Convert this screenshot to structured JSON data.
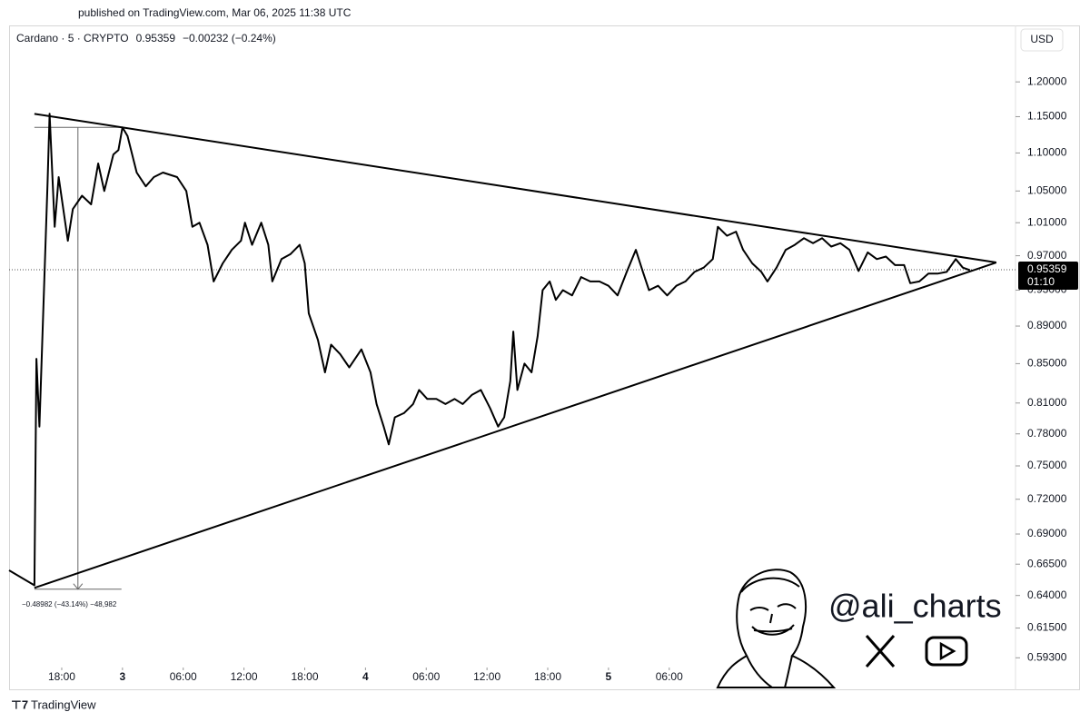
{
  "header": {
    "published": "published on TradingView.com, Mar 06, 2025 11:38 UTC"
  },
  "footer": {
    "brand": "TradingView"
  },
  "watermark": {
    "handle": "@ali_charts"
  },
  "chart_data": {
    "type": "line",
    "title": "Cardano · 5 · CRYPTO",
    "last": 0.95359,
    "change": "−0.00232 (−0.24%)",
    "currency": "USD",
    "countdown": "01:10",
    "color": "#000000",
    "log_scale": true,
    "x": [
      12.8,
      15.3,
      15.5,
      15.8,
      16.6,
      16.8,
      17.3,
      17.7,
      18.6,
      19.1,
      20.0,
      20.9,
      21.6,
      22.2,
      23.1,
      23.6,
      24.0,
      24.5,
      25.4,
      26.3,
      27.1,
      28.0,
      29.4,
      30.3,
      30.9,
      31.6,
      32.4,
      33.0,
      33.9,
      34.8,
      35.7,
      36.1,
      36.8,
      37.7,
      38.4,
      38.8,
      39.7,
      40.6,
      41.5,
      42.0,
      42.4,
      43.3,
      44.0,
      44.6,
      45.5,
      46.4,
      47.6,
      48.5,
      49.1,
      49.8,
      50.3,
      50.9,
      51.8,
      52.7,
      53.3,
      54.1,
      55.0,
      55.9,
      56.8,
      57.6,
      58.5,
      59.4,
      60.3,
      61.1,
      61.7,
      62.3,
      62.6,
      63.0,
      63.7,
      64.4,
      65.0,
      65.5,
      66.2,
      66.8,
      67.5,
      68.4,
      69.3,
      70.2,
      71.1,
      72.0,
      72.9,
      73.8,
      74.7,
      75.4,
      76.0,
      76.9,
      77.8,
      78.7,
      79.6,
      80.5,
      81.4,
      82.3,
      82.8,
      83.7,
      84.6,
      85.3,
      86.2,
      87.1,
      87.7,
      88.6,
      89.5,
      90.4,
      91.3,
      92.2,
      93.1,
      94.0,
      94.9,
      95.8,
      96.7,
      97.6,
      98.5,
      99.4,
      100.3,
      101.2,
      101.8,
      102.7,
      103.6,
      104.5,
      105.4,
      106.3,
      107.0,
      107.7
    ],
    "values": [
      0.66,
      0.648,
      0.855,
      0.787,
      1.062,
      1.154,
      1.005,
      1.068,
      0.988,
      1.027,
      1.044,
      1.033,
      1.086,
      1.05,
      1.098,
      1.104,
      1.135,
      1.123,
      1.074,
      1.056,
      1.068,
      1.074,
      1.068,
      1.05,
      1.005,
      1.01,
      0.983,
      0.94,
      0.961,
      0.977,
      0.988,
      1.01,
      0.983,
      1.01,
      0.983,
      0.94,
      0.966,
      0.972,
      0.983,
      0.961,
      0.904,
      0.875,
      0.841,
      0.87,
      0.86,
      0.846,
      0.865,
      0.841,
      0.809,
      0.787,
      0.77,
      0.796,
      0.8,
      0.809,
      0.823,
      0.814,
      0.814,
      0.809,
      0.814,
      0.809,
      0.818,
      0.823,
      0.805,
      0.787,
      0.796,
      0.832,
      0.884,
      0.823,
      0.85,
      0.841,
      0.879,
      0.93,
      0.94,
      0.919,
      0.93,
      0.924,
      0.945,
      0.94,
      0.94,
      0.935,
      0.924,
      0.951,
      0.977,
      0.951,
      0.93,
      0.935,
      0.924,
      0.935,
      0.94,
      0.951,
      0.956,
      0.966,
      1.005,
      0.994,
      0.999,
      0.977,
      0.961,
      0.951,
      0.94,
      0.956,
      0.977,
      0.983,
      0.991,
      0.985,
      0.991,
      0.981,
      0.985,
      0.977,
      0.952,
      0.974,
      0.966,
      0.969,
      0.959,
      0.959,
      0.938,
      0.94,
      0.949,
      0.949,
      0.951,
      0.966,
      0.956,
      0.953
    ],
    "trendlines": [
      {
        "x": [
          15.3,
          110.3
        ],
        "y": [
          1.154,
          0.962
        ]
      },
      {
        "x": [
          15.3,
          110.3
        ],
        "y": [
          0.646,
          0.962
        ]
      }
    ],
    "measure": {
      "x": [
        15.3,
        23.9
      ],
      "y": [
        1.135,
        0.645
      ],
      "arrow_x": 19.6,
      "label": "−0.48982 (−43.14%) −48,982"
    },
    "xlim": [
      12.8,
      112.2
    ],
    "xticks": [
      {
        "value": 18,
        "label": "18:00"
      },
      {
        "value": 24,
        "label": "3"
      },
      {
        "value": 30,
        "label": "06:00"
      },
      {
        "value": 36,
        "label": "12:00"
      },
      {
        "value": 42,
        "label": "18:00"
      },
      {
        "value": 48,
        "label": "4"
      },
      {
        "value": 54,
        "label": "06:00"
      },
      {
        "value": 60,
        "label": "12:00"
      },
      {
        "value": 66,
        "label": "18:00"
      },
      {
        "value": 72,
        "label": "5"
      },
      {
        "value": 78,
        "label": "06:00"
      }
    ],
    "ylim": [
      0.586,
      1.283
    ],
    "yticks": [
      {
        "value": 1.2,
        "label": "1.20000"
      },
      {
        "value": 1.15,
        "label": "1.15000"
      },
      {
        "value": 1.1,
        "label": "1.10000"
      },
      {
        "value": 1.05,
        "label": "1.05000"
      },
      {
        "value": 1.01,
        "label": "1.01000"
      },
      {
        "value": 0.97,
        "label": "0.97000"
      },
      {
        "value": 0.93,
        "label": "0.93000"
      },
      {
        "value": 0.89,
        "label": "0.89000"
      },
      {
        "value": 0.85,
        "label": "0.85000"
      },
      {
        "value": 0.81,
        "label": "0.81000"
      },
      {
        "value": 0.78,
        "label": "0.78000"
      },
      {
        "value": 0.75,
        "label": "0.75000"
      },
      {
        "value": 0.72,
        "label": "0.72000"
      },
      {
        "value": 0.69,
        "label": "0.69000"
      },
      {
        "value": 0.665,
        "label": "0.66500"
      },
      {
        "value": 0.64,
        "label": "0.64000"
      },
      {
        "value": 0.615,
        "label": "0.61500"
      },
      {
        "value": 0.593,
        "label": "0.59300"
      }
    ]
  }
}
